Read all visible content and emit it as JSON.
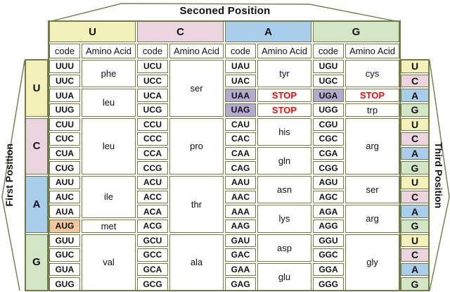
{
  "title": "Seconed Position",
  "axis_labels": {
    "left": "First Position",
    "right": "Third Position"
  },
  "subheader": {
    "code": "code",
    "amino": "Amino Acid"
  },
  "second_positions": [
    "U",
    "C",
    "A",
    "G"
  ],
  "third_cycle": [
    "U",
    "C",
    "A",
    "G"
  ],
  "special_codons": {
    "UAA": "stop",
    "UAG": "stop",
    "UGA": "stop",
    "AUG": "start"
  },
  "colors": {
    "U": "#f3f0ba",
    "C": "#ebd3df",
    "A": "#a9cdeb",
    "G": "#d2e6c6",
    "stop_codon_bg": "#b4aacf",
    "start_codon_bg": "#f3c79e",
    "stop_text": "#e01010",
    "border": "#6f7b48",
    "cell_bg": "#ffffff"
  },
  "blocks": [
    {
      "first": "U",
      "codes": [
        [
          "UUU",
          "UCU",
          "UAU",
          "UGU"
        ],
        [
          "UUC",
          "UCC",
          "UAC",
          "UGC"
        ],
        [
          "UUA",
          "UCA",
          "UAA",
          "UGA"
        ],
        [
          "UUG",
          "UCG",
          "UAG",
          "UGG"
        ]
      ],
      "aminos": [
        [
          {
            "label": "phe",
            "span": 2
          },
          {
            "label": "leu",
            "span": 2
          }
        ],
        [
          {
            "label": "ser",
            "span": 4
          }
        ],
        [
          {
            "label": "tyr",
            "span": 2
          },
          {
            "label": "STOP",
            "span": 1,
            "stop": true
          },
          {
            "label": "STOP",
            "span": 1,
            "stop": true
          }
        ],
        [
          {
            "label": "cys",
            "span": 2
          },
          {
            "label": "STOP",
            "span": 1,
            "stop": true
          },
          {
            "label": "trp",
            "span": 1
          }
        ]
      ]
    },
    {
      "first": "C",
      "codes": [
        [
          "CUU",
          "CCU",
          "CAU",
          "CGU"
        ],
        [
          "CUC",
          "CCC",
          "CAC",
          "CGC"
        ],
        [
          "CUA",
          "CCA",
          "CAA",
          "CGA"
        ],
        [
          "CUG",
          "CCG",
          "CAG",
          "CGG"
        ]
      ],
      "aminos": [
        [
          {
            "label": "leu",
            "span": 4
          }
        ],
        [
          {
            "label": "pro",
            "span": 4
          }
        ],
        [
          {
            "label": "his",
            "span": 2
          },
          {
            "label": "gln",
            "span": 2
          }
        ],
        [
          {
            "label": "arg",
            "span": 4
          }
        ]
      ]
    },
    {
      "first": "A",
      "codes": [
        [
          "AUU",
          "ACU",
          "AAU",
          "AGU"
        ],
        [
          "AUC",
          "ACC",
          "AAC",
          "AGC"
        ],
        [
          "AUA",
          "ACA",
          "AAA",
          "AGA"
        ],
        [
          "AUG",
          "ACG",
          "AAG",
          "AGG"
        ]
      ],
      "aminos": [
        [
          {
            "label": "ile",
            "span": 3
          },
          {
            "label": "met",
            "span": 1
          }
        ],
        [
          {
            "label": "thr",
            "span": 4
          }
        ],
        [
          {
            "label": "asn",
            "span": 2
          },
          {
            "label": "lys",
            "span": 2
          }
        ],
        [
          {
            "label": "ser",
            "span": 2
          },
          {
            "label": "arg",
            "span": 2
          }
        ]
      ]
    },
    {
      "first": "G",
      "codes": [
        [
          "GUU",
          "GCU",
          "GAU",
          "GGU"
        ],
        [
          "GUC",
          "GCC",
          "GAC",
          "GGC"
        ],
        [
          "GUA",
          "GCA",
          "GAA",
          "GGA"
        ],
        [
          "GUG",
          "GCG",
          "GAG",
          "GGG"
        ]
      ],
      "aminos": [
        [
          {
            "label": "val",
            "span": 4
          }
        ],
        [
          {
            "label": "ala",
            "span": 4
          }
        ],
        [
          {
            "label": "asp",
            "span": 2
          },
          {
            "label": "glu",
            "span": 2
          }
        ],
        [
          {
            "label": "gly",
            "span": 4
          }
        ]
      ]
    }
  ]
}
